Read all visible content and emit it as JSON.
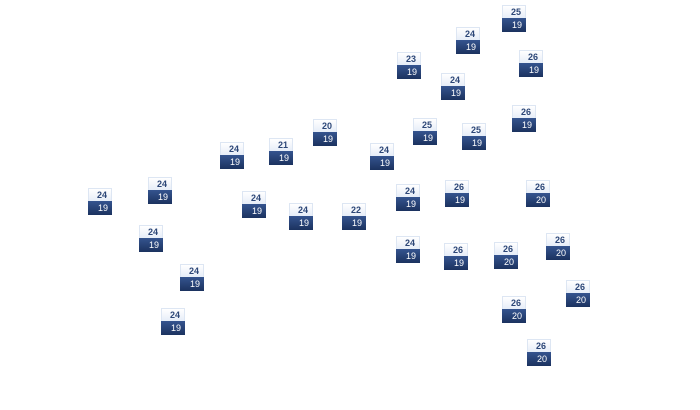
{
  "colors": {
    "high_bg": "#eef3fb",
    "high_text": "#2c4677",
    "low_bg": "#243f72",
    "low_text": "#ffffff"
  },
  "markers": [
    {
      "high": "25",
      "low": "19"
    },
    {
      "high": "24",
      "low": "19"
    },
    {
      "high": "23",
      "low": "19"
    },
    {
      "high": "26",
      "low": "19"
    },
    {
      "high": "24",
      "low": "19"
    },
    {
      "high": "26",
      "low": "19"
    },
    {
      "high": "25",
      "low": "19"
    },
    {
      "high": "25",
      "low": "19"
    },
    {
      "high": "20",
      "low": "19"
    },
    {
      "high": "21",
      "low": "19"
    },
    {
      "high": "24",
      "low": "19"
    },
    {
      "high": "24",
      "low": "19"
    },
    {
      "high": "24",
      "low": "19"
    },
    {
      "high": "24",
      "low": "19"
    },
    {
      "high": "24",
      "low": "19"
    },
    {
      "high": "24",
      "low": "19"
    },
    {
      "high": "22",
      "low": "19"
    },
    {
      "high": "24",
      "low": "19"
    },
    {
      "high": "26",
      "low": "19"
    },
    {
      "high": "26",
      "low": "20"
    },
    {
      "high": "24",
      "low": "19"
    },
    {
      "high": "24",
      "low": "19"
    },
    {
      "high": "26",
      "low": "19"
    },
    {
      "high": "26",
      "low": "20"
    },
    {
      "high": "26",
      "low": "20"
    },
    {
      "high": "24",
      "low": "19"
    },
    {
      "high": "26",
      "low": "20"
    },
    {
      "high": "26",
      "low": "20"
    },
    {
      "high": "24",
      "low": "19"
    },
    {
      "high": "26",
      "low": "20"
    }
  ]
}
